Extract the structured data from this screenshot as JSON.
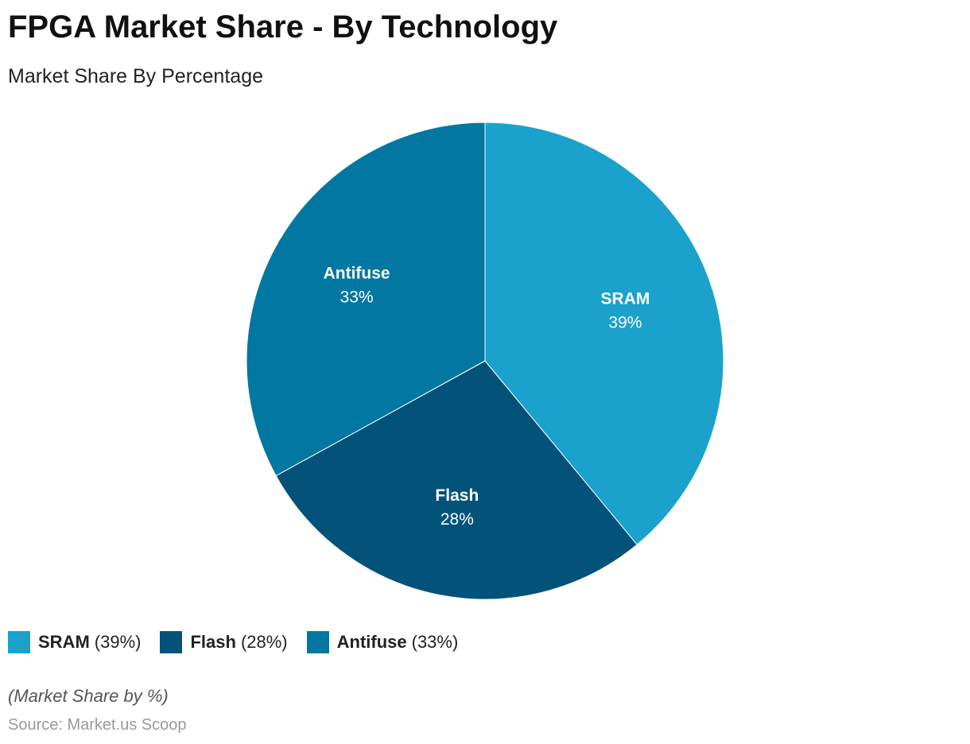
{
  "title": "FPGA Market Share - By Technology",
  "subtitle": "Market Share By Percentage",
  "chart_data": {
    "type": "pie",
    "categories": [
      "SRAM",
      "Flash",
      "Antifuse"
    ],
    "values": [
      39,
      28,
      33
    ],
    "value_labels": [
      "39%",
      "28%",
      "33%"
    ],
    "colors": [
      "#1aa1cc",
      "#03527a",
      "#0277a1"
    ],
    "start": "top, clockwise",
    "legend": {
      "placement": "bottom-left",
      "items": [
        {
          "name": "SRAM",
          "value": "(39%)"
        },
        {
          "name": "Flash",
          "value": "(28%)"
        },
        {
          "name": "Antifuse",
          "value": "(33%)"
        }
      ]
    }
  },
  "note": "(Market Share by %)",
  "source": "Source: Market.us Scoop"
}
